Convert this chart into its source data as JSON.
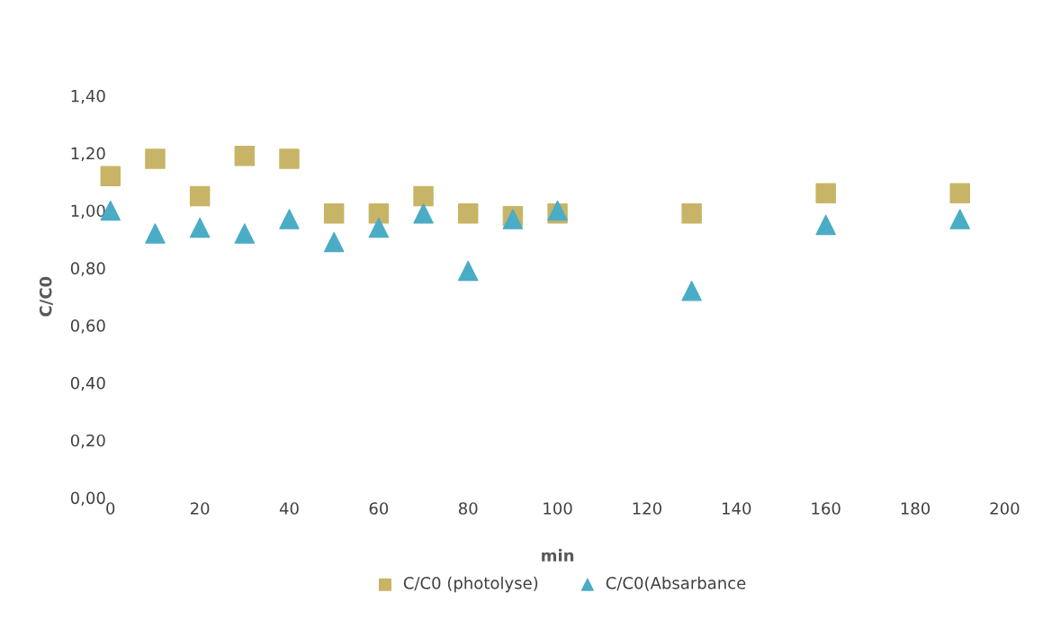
{
  "chart_data": {
    "type": "scatter",
    "xlabel": "min",
    "ylabel": "C/C0",
    "xlim": [
      0,
      200
    ],
    "xticks": [
      0,
      20,
      40,
      60,
      80,
      100,
      120,
      140,
      160,
      180,
      200
    ],
    "ylim": [
      0,
      1.4
    ],
    "yticks": [
      {
        "value": 0,
        "label": "0,00"
      },
      {
        "value": 0.2,
        "label": "0,20"
      },
      {
        "value": 0.4,
        "label": "0,40"
      },
      {
        "value": 0.6,
        "label": "0,60"
      },
      {
        "value": 0.8,
        "label": "0,80"
      },
      {
        "value": 1.0,
        "label": "1,00"
      },
      {
        "value": 1.2,
        "label": "1,20"
      },
      {
        "value": 1.4,
        "label": "1,40"
      }
    ],
    "x": [
      0,
      10,
      20,
      30,
      40,
      50,
      60,
      70,
      80,
      90,
      100,
      130,
      160,
      190
    ],
    "series": [
      {
        "name": "C/C0 (photolyse)",
        "color": "#c8b466",
        "marker": "square",
        "values": [
          1.12,
          1.18,
          1.05,
          1.19,
          1.18,
          0.99,
          0.99,
          1.05,
          0.99,
          0.98,
          0.99,
          0.99,
          1.06,
          1.06
        ]
      },
      {
        "name": "C/C0(Absarbance",
        "color": "#4bacc6",
        "marker": "triangle",
        "values": [
          1.0,
          0.92,
          0.94,
          0.92,
          0.97,
          0.89,
          0.94,
          0.99,
          0.79,
          0.97,
          1.0,
          0.72,
          0.95,
          0.97
        ]
      }
    ],
    "grid": false,
    "legend": "bottom"
  }
}
